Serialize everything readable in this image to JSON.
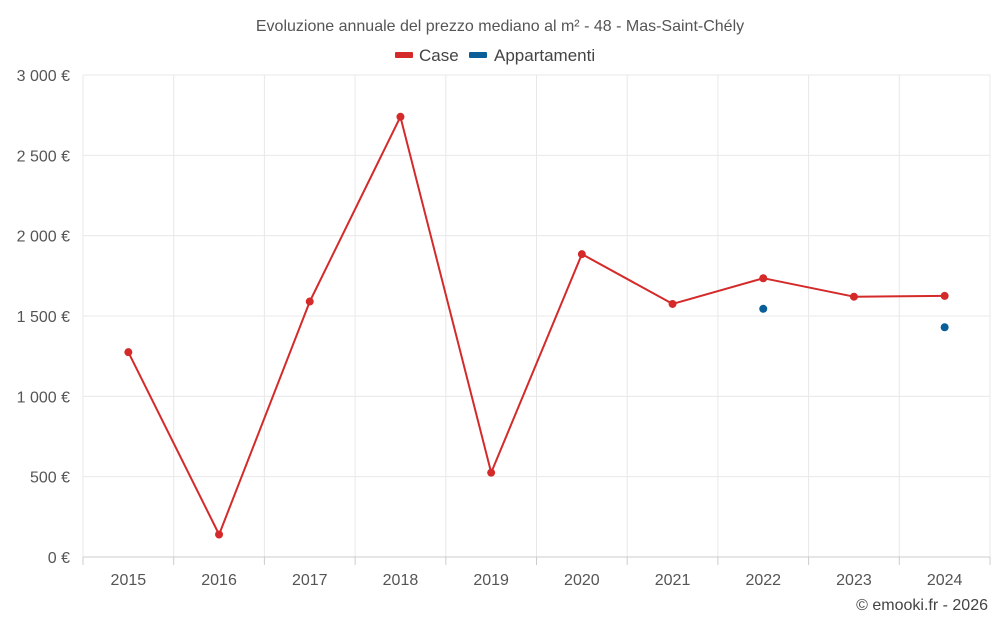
{
  "chart_data": {
    "type": "line",
    "title": "Evoluzione annuale del prezzo mediano al m² - 48 - Mas-Saint-Chély",
    "categories": [
      "2015",
      "2016",
      "2017",
      "2018",
      "2019",
      "2020",
      "2021",
      "2022",
      "2023",
      "2024"
    ],
    "series": [
      {
        "name": "Case",
        "color": "#d42a2a",
        "values": [
          1275,
          140,
          1590,
          2740,
          525,
          1885,
          1575,
          1735,
          1620,
          1625
        ]
      },
      {
        "name": "Appartamenti",
        "color": "#0a5f98",
        "values": [
          null,
          null,
          null,
          null,
          null,
          null,
          null,
          1545,
          null,
          1430
        ]
      }
    ],
    "ylim": [
      0,
      3000
    ],
    "yticks": [
      0,
      500,
      1000,
      1500,
      2000,
      2500,
      3000
    ],
    "ytick_labels": [
      "0 €",
      "500 €",
      "1 000 €",
      "1 500 €",
      "2 000 €",
      "2 500 €",
      "3 000 €"
    ],
    "xlabel": "",
    "ylabel": "",
    "grid": true,
    "legend_position": "top-center"
  },
  "credit": "© emooki.fr - 2026"
}
